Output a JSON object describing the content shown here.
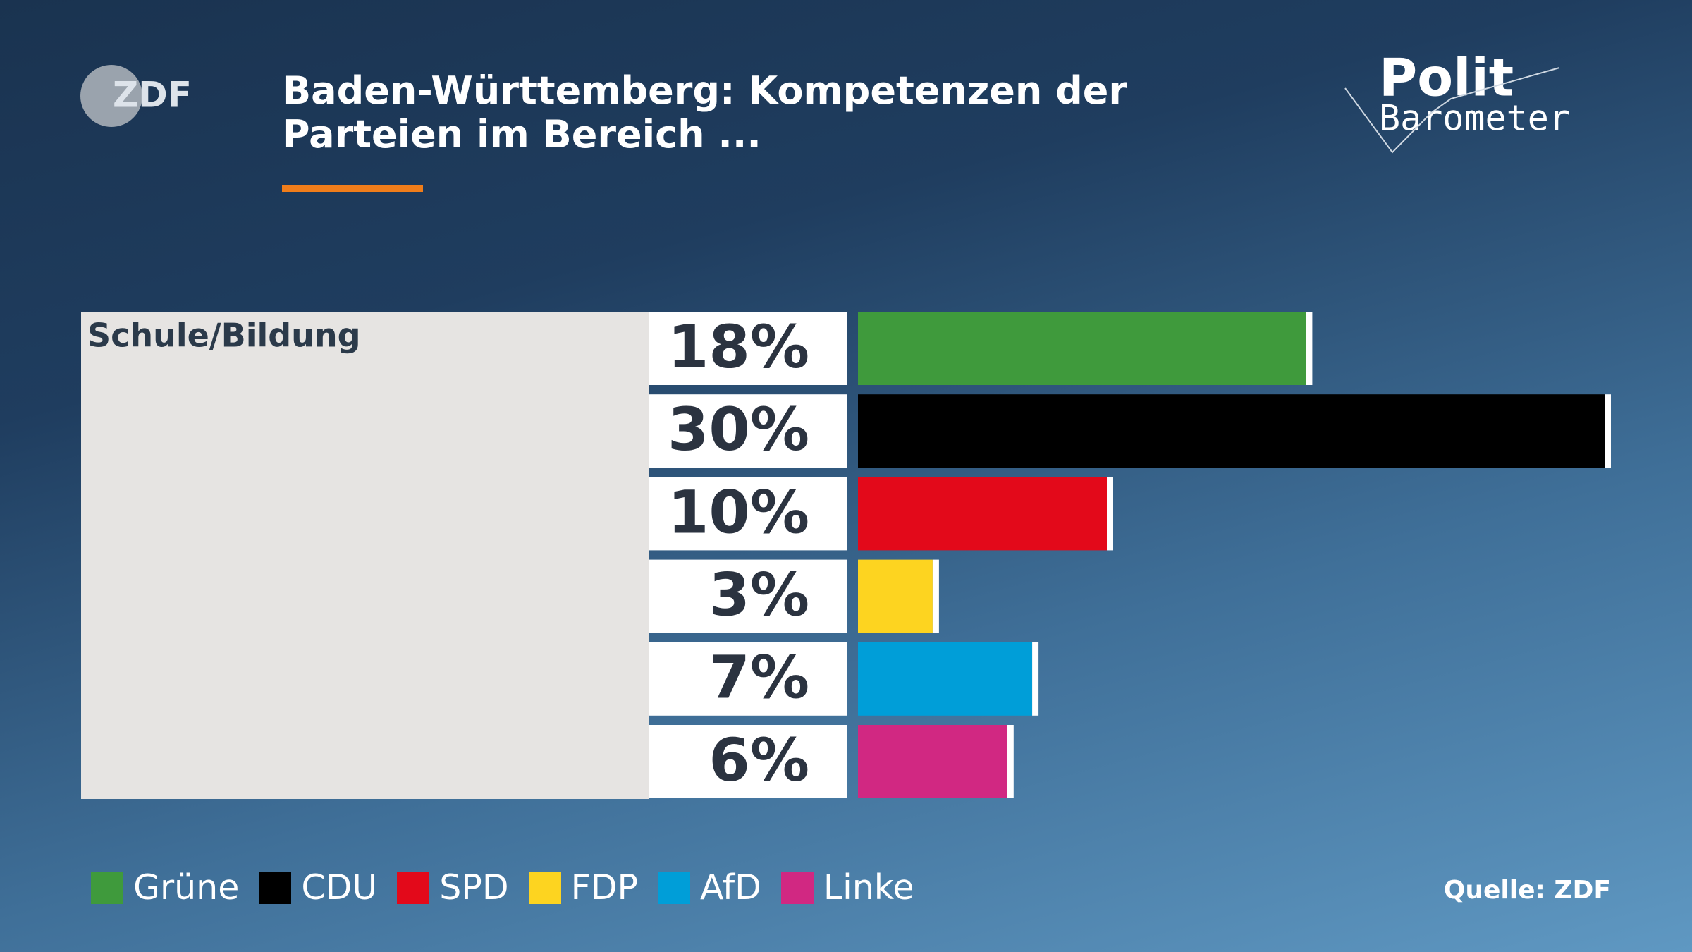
{
  "chart_data": {
    "type": "bar",
    "title": "Baden-Württemberg: Kompetenzen der Parteien im Bereich ...",
    "logo": "ZDF",
    "brand": [
      "Polit",
      "Barometer"
    ],
    "source": "Quelle: ZDF",
    "categories": [
      "Schule/Bildung"
    ],
    "series": [
      {
        "name": "Grüne",
        "color": "#3f9a3c",
        "values": [
          18
        ],
        "value_labels": [
          "18%"
        ]
      },
      {
        "name": "CDU",
        "color": "#000000",
        "values": [
          30
        ],
        "value_labels": [
          "30%"
        ]
      },
      {
        "name": "SPD",
        "color": "#e3091a",
        "values": [
          10
        ],
        "value_labels": [
          "10%"
        ]
      },
      {
        "name": "FDP",
        "color": "#fdd420",
        "values": [
          3
        ],
        "value_labels": [
          "3%"
        ]
      },
      {
        "name": "AfD",
        "color": "#009ed8",
        "values": [
          7
        ],
        "value_labels": [
          "7%"
        ]
      },
      {
        "name": "Linke",
        "color": "#d12882",
        "values": [
          6
        ],
        "value_labels": [
          "6%"
        ]
      }
    ]
  }
}
